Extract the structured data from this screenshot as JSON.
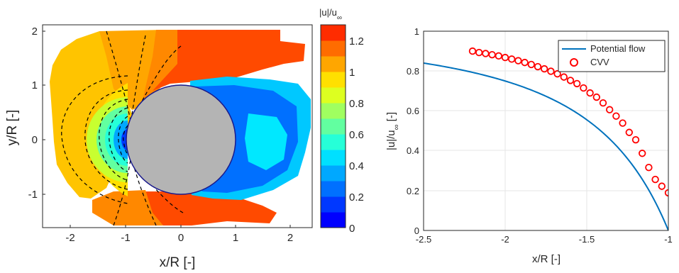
{
  "chart_data": [
    {
      "type": "heatmap",
      "xlabel": "x/R [-]",
      "ylabel": "y/R [-]",
      "xlim": [
        -2.5,
        2.5
      ],
      "ylim": [
        -1.6,
        2.1
      ],
      "xticks": [
        "-2",
        "-1",
        "0",
        "1",
        "2"
      ],
      "yticks": [
        "2",
        "1",
        "0",
        "-1"
      ],
      "colorbar": {
        "label_main": "|u|/u",
        "label_sub": "∞",
        "range": [
          0,
          1.3
        ],
        "ticks": [
          "1.2",
          "1",
          "0.8",
          "0.6",
          "0.4",
          "0.2",
          "0"
        ],
        "levels": [
          {
            "from": 0.0,
            "to": 0.1,
            "color": "#0000ff"
          },
          {
            "from": 0.1,
            "to": 0.2,
            "color": "#0038ff"
          },
          {
            "from": 0.2,
            "to": 0.3,
            "color": "#0070ff"
          },
          {
            "from": 0.3,
            "to": 0.4,
            "color": "#00a8ff"
          },
          {
            "from": 0.4,
            "to": 0.5,
            "color": "#00e0ff"
          },
          {
            "from": 0.5,
            "to": 0.6,
            "color": "#26ffd8"
          },
          {
            "from": 0.6,
            "to": 0.7,
            "color": "#62ffa0"
          },
          {
            "from": 0.7,
            "to": 0.8,
            "color": "#a0ff60"
          },
          {
            "from": 0.8,
            "to": 0.9,
            "color": "#ddff20"
          },
          {
            "from": 0.9,
            "to": 1.0,
            "color": "#ffe000"
          },
          {
            "from": 1.0,
            "to": 1.1,
            "color": "#ffa600"
          },
          {
            "from": 1.1,
            "to": 1.2,
            "color": "#ff6c00"
          },
          {
            "from": 1.2,
            "to": 1.3,
            "color": "#ff2c00"
          }
        ]
      },
      "cylinder": {
        "center": [
          0,
          0
        ],
        "radius": 1,
        "color": "#b4b4b4",
        "edge": "#1a1a8c"
      },
      "contour_lines": "dashed black, potential flow iso-lines near stagnation point"
    },
    {
      "type": "line",
      "xlabel": "x/R [-]",
      "ylabel_main": "|u|/u",
      "ylabel_sub": "∞",
      "ylabel_tail": " [-]",
      "xlim": [
        -2.5,
        -1
      ],
      "ylim": [
        0,
        1
      ],
      "xticks": [
        "-2.5",
        "-2",
        "-1.5",
        "-1"
      ],
      "yticks": [
        "1",
        "0.8",
        "0.6",
        "0.4",
        "0.2",
        "0"
      ],
      "grid": true,
      "legend_position": "top-right",
      "series": [
        {
          "name": "Potential flow",
          "style": "line",
          "color": "#0072bd",
          "formula": "1 - 1/x^2",
          "x_range": [
            -2.5,
            -1
          ]
        },
        {
          "name": "CVV",
          "style": "markers",
          "color": "#ff0000",
          "x": [
            -2.2,
            -2.16,
            -2.12,
            -2.08,
            -2.04,
            -2.0,
            -1.96,
            -1.92,
            -1.88,
            -1.84,
            -1.8,
            -1.76,
            -1.72,
            -1.68,
            -1.64,
            -1.6,
            -1.56,
            -1.52,
            -1.48,
            -1.44,
            -1.4,
            -1.36,
            -1.32,
            -1.28,
            -1.24,
            -1.2,
            -1.16,
            -1.12,
            -1.08,
            -1.04,
            -1.0
          ],
          "y": [
            0.9,
            0.893,
            0.888,
            0.882,
            0.876,
            0.868,
            0.86,
            0.852,
            0.843,
            0.833,
            0.822,
            0.811,
            0.799,
            0.786,
            0.77,
            0.753,
            0.737,
            0.715,
            0.69,
            0.669,
            0.64,
            0.606,
            0.574,
            0.539,
            0.492,
            0.455,
            0.387,
            0.316,
            0.256,
            0.222,
            0.189
          ]
        }
      ]
    }
  ]
}
